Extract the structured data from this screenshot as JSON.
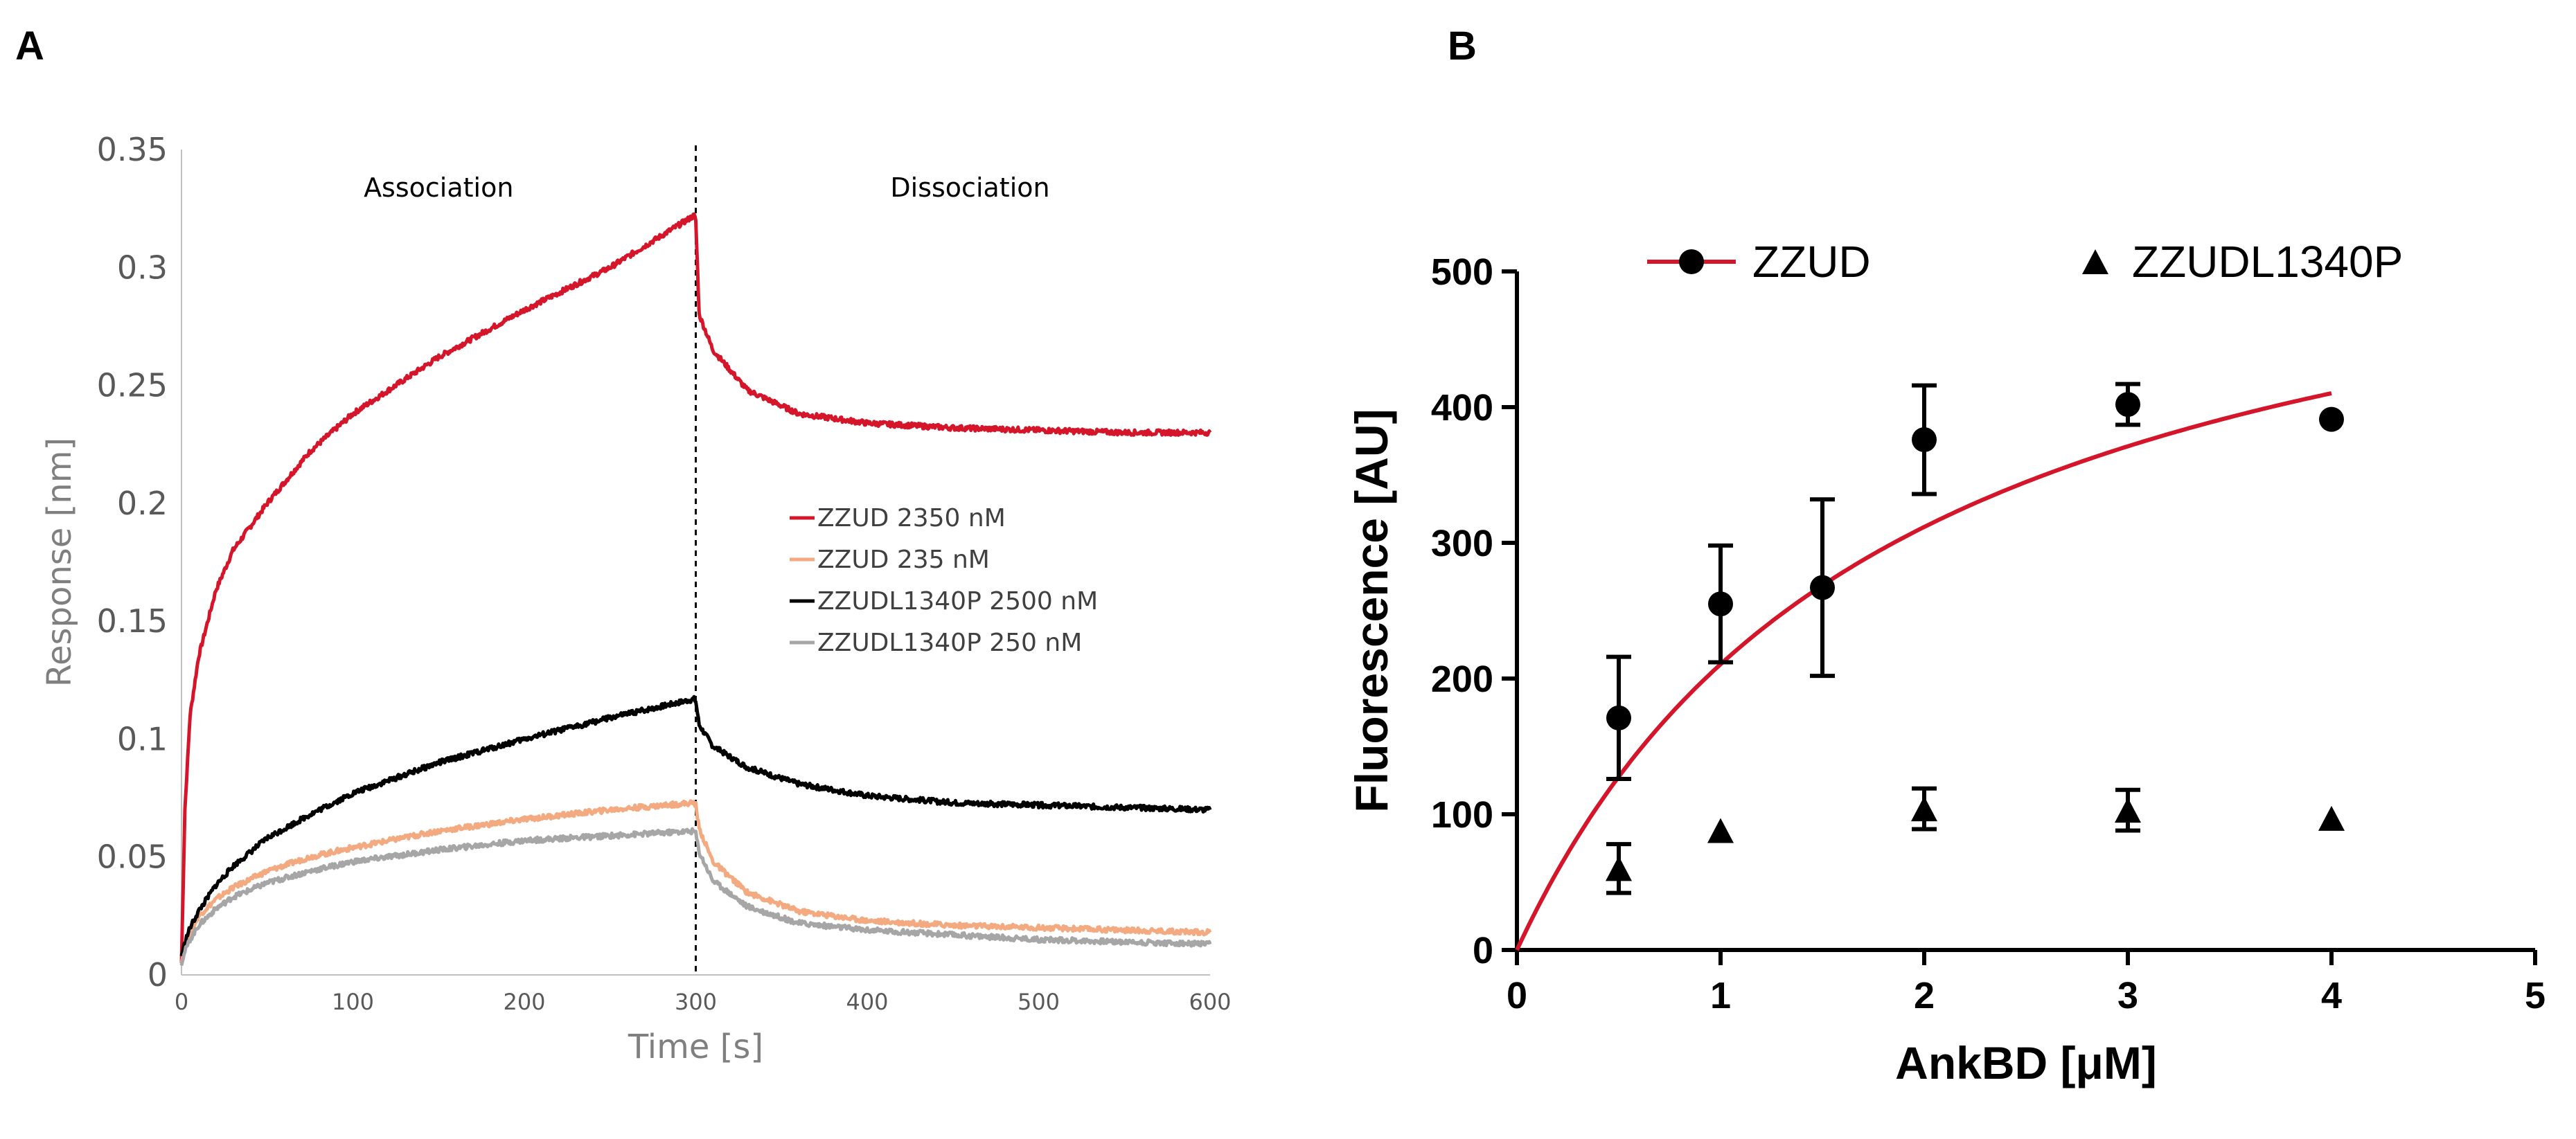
{
  "panels": {
    "a": {
      "letter": "A"
    },
    "b": {
      "letter": "B"
    }
  },
  "chart_data": [
    {
      "type": "line",
      "panel": "A",
      "xlabel": "Time [s]",
      "ylabel": "Response [nm]",
      "xlim": [
        0,
        600
      ],
      "ylim": [
        0,
        0.35
      ],
      "xticks": [
        0,
        100,
        200,
        300,
        400,
        500,
        600
      ],
      "yticks": [
        0,
        0.05,
        0.1,
        0.15,
        0.2,
        0.25,
        0.3,
        0.35
      ],
      "ytick_labels": [
        "0",
        "0.05",
        "0.1",
        "0.15",
        "0.2",
        "0.25",
        "0.3",
        "0.35"
      ],
      "grid": false,
      "legend_position": "center-right",
      "annotations": [
        {
          "text": "Association",
          "x": 150,
          "y": 0.34
        },
        {
          "text": "Dissociation",
          "x": 460,
          "y": 0.34
        }
      ],
      "vline": {
        "x": 300,
        "style": "dashed"
      },
      "x": [
        0,
        2,
        5,
        10,
        20,
        30,
        50,
        75,
        100,
        150,
        200,
        250,
        299,
        300,
        302,
        310,
        330,
        360,
        400,
        450,
        500,
        550,
        600
      ],
      "series": [
        {
          "name": "ZZUD 2350 nM",
          "color": "#d4152a",
          "values": [
            0.005,
            0.07,
            0.11,
            0.135,
            0.163,
            0.18,
            0.2,
            0.222,
            0.238,
            0.262,
            0.282,
            0.3,
            0.322,
            0.32,
            0.28,
            0.265,
            0.248,
            0.238,
            0.234,
            0.232,
            0.231,
            0.23,
            0.23
          ]
        },
        {
          "name": "ZZUD 235 nM",
          "color": "#f3aa80",
          "values": [
            0.005,
            0.012,
            0.018,
            0.025,
            0.032,
            0.037,
            0.044,
            0.05,
            0.054,
            0.061,
            0.066,
            0.07,
            0.073,
            0.072,
            0.062,
            0.048,
            0.035,
            0.027,
            0.023,
            0.021,
            0.02,
            0.019,
            0.018
          ]
        },
        {
          "name": "ZZUDL1340P 2500 nM",
          "color": "#000000",
          "values": [
            0.008,
            0.014,
            0.02,
            0.027,
            0.038,
            0.046,
            0.058,
            0.068,
            0.077,
            0.09,
            0.1,
            0.109,
            0.117,
            0.116,
            0.106,
            0.097,
            0.088,
            0.081,
            0.076,
            0.073,
            0.072,
            0.071,
            0.07
          ]
        },
        {
          "name": "ZZUDL1340P 250 nM",
          "color": "#a6a6a6",
          "values": [
            0.004,
            0.01,
            0.015,
            0.021,
            0.028,
            0.033,
            0.039,
            0.044,
            0.048,
            0.053,
            0.057,
            0.059,
            0.061,
            0.06,
            0.052,
            0.04,
            0.029,
            0.022,
            0.019,
            0.017,
            0.015,
            0.014,
            0.013
          ]
        }
      ]
    },
    {
      "type": "scatter",
      "panel": "B",
      "xlabel": "AnkBD [μM]",
      "ylabel": "Fluorescence [AU]",
      "xlim": [
        0,
        5
      ],
      "ylim": [
        0,
        500
      ],
      "xticks": [
        0,
        1,
        2,
        3,
        4,
        5
      ],
      "yticks": [
        0,
        100,
        200,
        300,
        400,
        500
      ],
      "grid": false,
      "legend_position": "top",
      "series": [
        {
          "name": "ZZUD",
          "marker": "circle",
          "color": "#000000",
          "x": [
            0.5,
            1,
            1.5,
            2,
            3,
            4
          ],
          "y": [
            171,
            255,
            267,
            376,
            402,
            391
          ],
          "error": [
            45,
            43,
            65,
            40,
            15,
            0
          ]
        },
        {
          "name": "ZZUDL1340P",
          "marker": "triangle",
          "color": "#000000",
          "x": [
            0.5,
            1,
            2,
            3,
            4
          ],
          "y": [
            60,
            88,
            104,
            103,
            97
          ],
          "error": [
            18,
            0,
            15,
            15,
            0
          ]
        }
      ],
      "fit": {
        "series": "ZZUD",
        "color": "#d4152a",
        "model": "one-site binding",
        "bmax": 600,
        "kd": 1.85,
        "x_range": [
          0,
          4
        ]
      }
    }
  ]
}
